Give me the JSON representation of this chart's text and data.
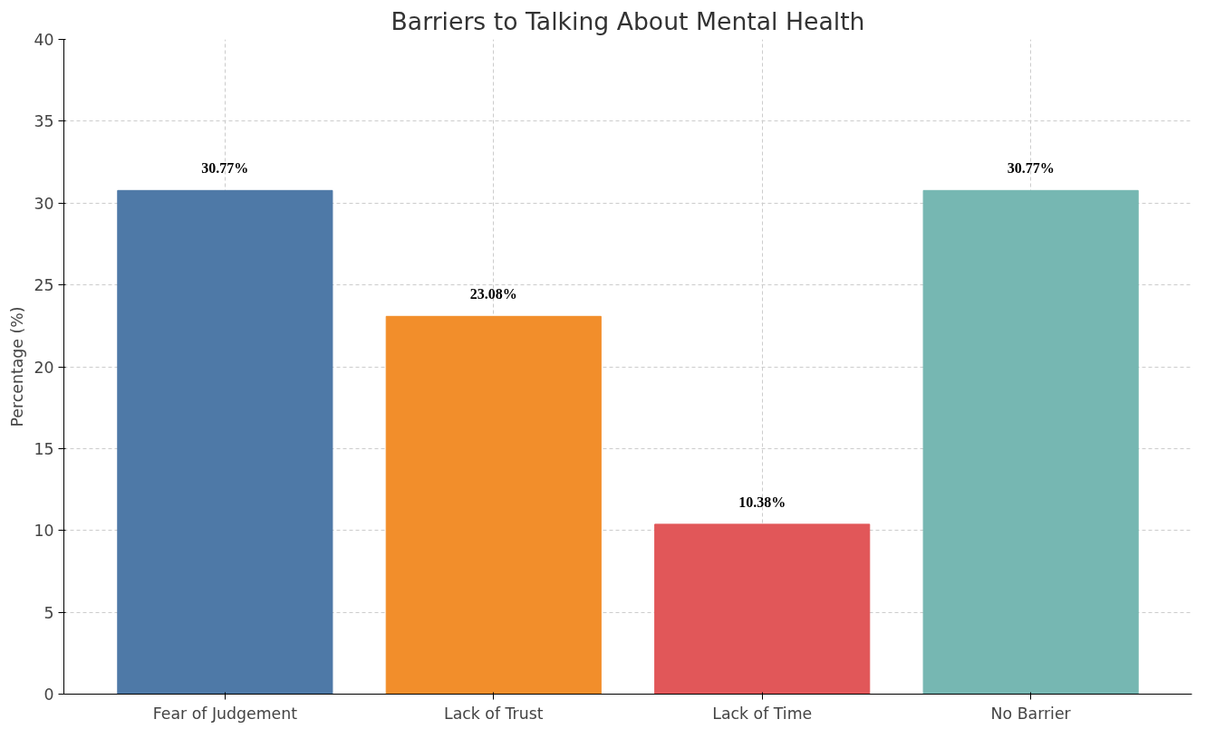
{
  "chart_data": {
    "type": "bar",
    "title": "Barriers to Talking About Mental Health",
    "ylabel": "Percentage (%)",
    "categories": [
      "Fear of Judgement",
      "Lack of Trust",
      "Lack of Time",
      "No Barrier"
    ],
    "values": [
      30.77,
      23.08,
      10.38,
      30.77
    ],
    "colors": [
      "#4e79a7",
      "#f28e2b",
      "#e15759",
      "#76b7b2"
    ],
    "value_labels": [
      "30.77%",
      "23.08%",
      "10.38%",
      "30.77%"
    ],
    "ylim": [
      0,
      40
    ],
    "yticks": [
      0,
      5,
      10,
      15,
      20,
      25,
      30,
      35,
      40
    ],
    "grid": true
  }
}
